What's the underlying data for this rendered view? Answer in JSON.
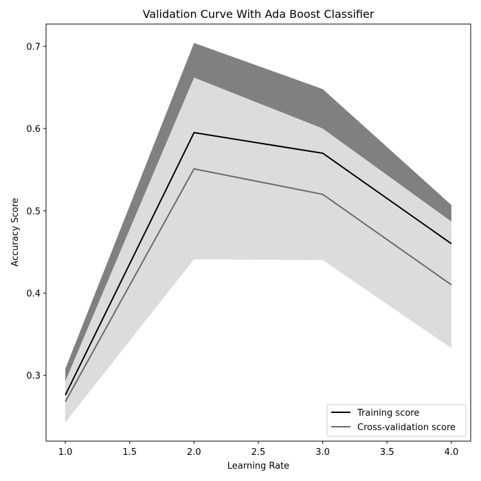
{
  "chart_data": {
    "type": "line",
    "title": "Validation Curve With Ada Boost Classifier",
    "xlabel": "Learning Rate",
    "ylabel": "Accuracy Score",
    "x": [
      1.0,
      2.0,
      3.0,
      4.0
    ],
    "xlim": [
      0.85,
      4.15
    ],
    "ylim": [
      0.22,
      0.727
    ],
    "xticks": [
      1.0,
      1.5,
      2.0,
      2.5,
      3.0,
      3.5,
      4.0
    ],
    "xtick_labels": [
      "1.0",
      "1.5",
      "2.0",
      "2.5",
      "3.0",
      "3.5",
      "4.0"
    ],
    "yticks": [
      0.3,
      0.4,
      0.5,
      0.6,
      0.7
    ],
    "ytick_labels": [
      "0.3",
      "0.4",
      "0.5",
      "0.6",
      "0.7"
    ],
    "grid": false,
    "legend_position": "bottom-right",
    "series": [
      {
        "name": "Training score",
        "values": [
          0.276,
          0.595,
          0.57,
          0.46
        ],
        "band_lower": [
          0.243,
          0.486,
          0.49,
          0.413
        ],
        "band_upper": [
          0.308,
          0.704,
          0.648,
          0.507
        ],
        "line_color": "#000000",
        "band_color": "#808080"
      },
      {
        "name": "Cross-validation score",
        "values": [
          0.268,
          0.551,
          0.52,
          0.41
        ],
        "band_lower": [
          0.243,
          0.441,
          0.44,
          0.333
        ],
        "band_upper": [
          0.293,
          0.662,
          0.6,
          0.487
        ],
        "line_color": "#696969",
        "band_color": "#dcdcdc"
      }
    ]
  }
}
